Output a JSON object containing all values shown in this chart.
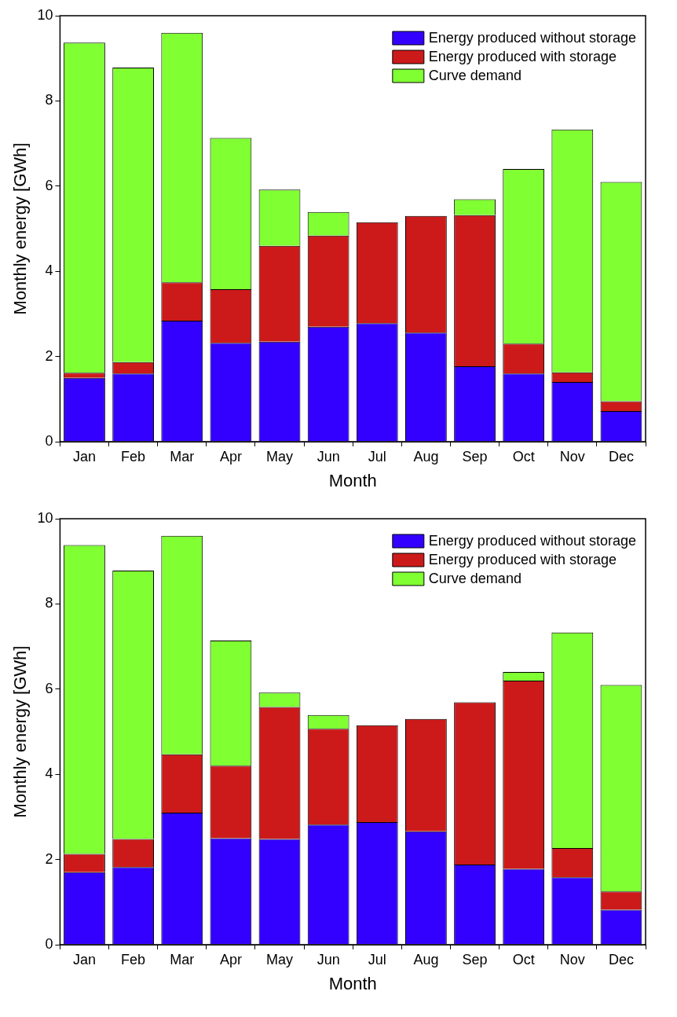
{
  "chart_data": [
    {
      "type": "bar",
      "xlabel": "Month",
      "ylabel": "Monthly energy [GWh]",
      "categories": [
        "Jan",
        "Feb",
        "Mar",
        "Apr",
        "May",
        "Jun",
        "Jul",
        "Aug",
        "Sep",
        "Oct",
        "Nov",
        "Dec"
      ],
      "stacked": true,
      "ylim": [
        0,
        10
      ],
      "yticks": [
        0,
        2,
        4,
        6,
        8,
        10
      ],
      "grid": false,
      "legend": "top right",
      "series": [
        {
          "name": "Energy produced without storage",
          "color": "#3300ff",
          "values": [
            1.5,
            1.6,
            2.84,
            2.32,
            2.35,
            2.7,
            2.78,
            2.56,
            1.77,
            1.6,
            1.4,
            0.72
          ]
        },
        {
          "name": "Energy produced with storage",
          "color": "#cc1a1a",
          "values": [
            0.12,
            0.27,
            0.9,
            1.26,
            2.25,
            2.14,
            2.37,
            2.74,
            3.55,
            0.7,
            0.23,
            0.23
          ]
        },
        {
          "name": "Curve demand",
          "color": "#80ff33",
          "values": [
            7.75,
            6.91,
            5.86,
            3.55,
            1.32,
            0.55,
            0,
            0,
            0.37,
            4.1,
            5.7,
            5.15
          ]
        }
      ]
    },
    {
      "type": "bar",
      "xlabel": "Month",
      "ylabel": "Monthly energy [GWh]",
      "categories": [
        "Jan",
        "Feb",
        "Mar",
        "Apr",
        "May",
        "Jun",
        "Jul",
        "Aug",
        "Sep",
        "Oct",
        "Nov",
        "Dec"
      ],
      "stacked": true,
      "ylim": [
        0,
        10
      ],
      "yticks": [
        0,
        2,
        4,
        6,
        8,
        10
      ],
      "grid": false,
      "legend": "top right",
      "series": [
        {
          "name": "Energy produced without storage",
          "color": "#3300ff",
          "values": [
            1.7,
            1.82,
            3.1,
            2.5,
            2.48,
            2.82,
            2.88,
            2.66,
            1.88,
            1.78,
            1.58,
            0.82
          ]
        },
        {
          "name": "Energy produced with storage",
          "color": "#cc1a1a",
          "values": [
            0.43,
            0.66,
            1.37,
            1.7,
            3.1,
            2.25,
            2.27,
            2.64,
            3.81,
            4.42,
            0.69,
            0.43
          ]
        },
        {
          "name": "Curve demand",
          "color": "#80ff33",
          "values": [
            7.25,
            6.3,
            5.13,
            2.94,
            0.34,
            0.32,
            0,
            0,
            0,
            0.2,
            5.06,
            4.85
          ]
        }
      ]
    }
  ]
}
